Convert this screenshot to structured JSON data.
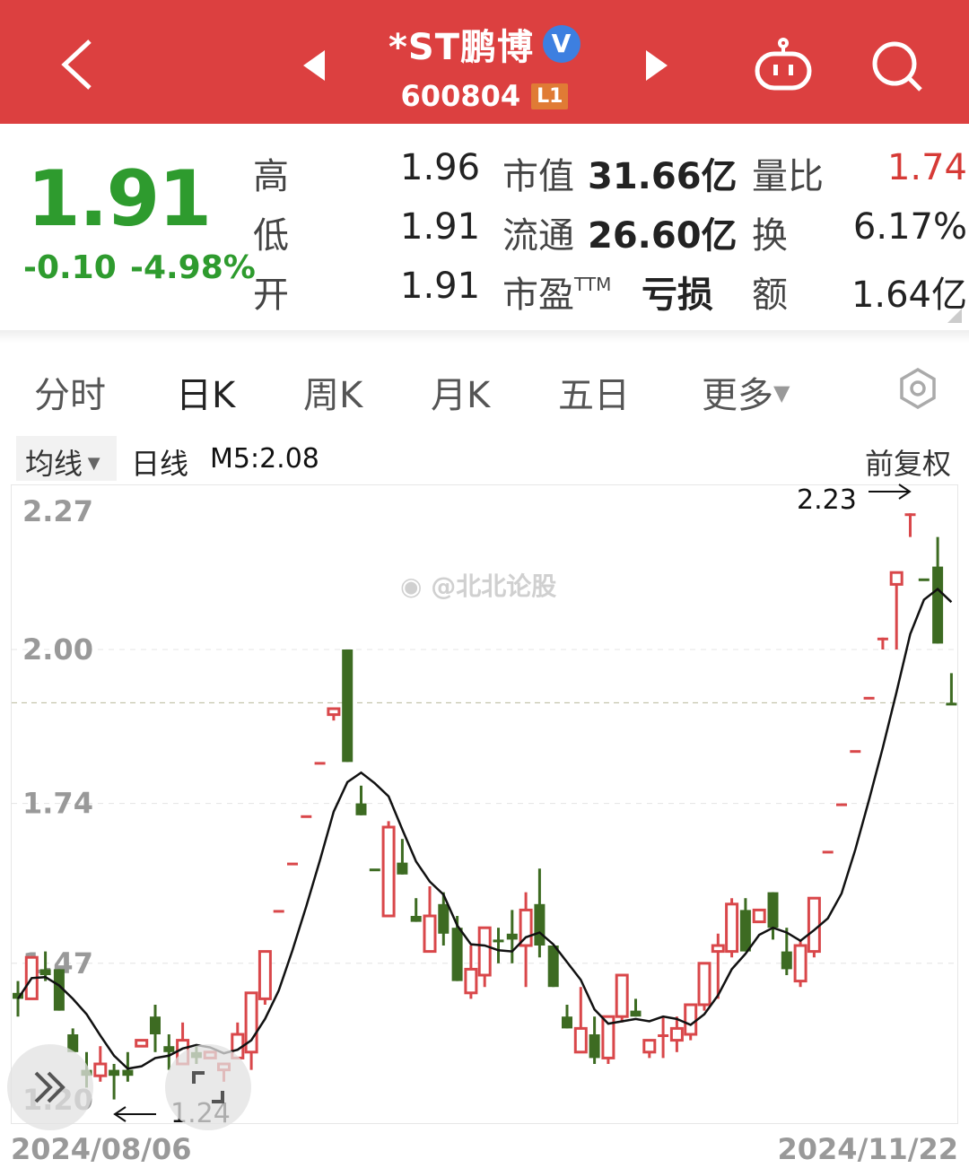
{
  "header": {
    "stock_name": "*ST鹏博",
    "verified_badge": "V",
    "stock_code": "600804",
    "level_badge": "L1",
    "icons": [
      "back-chevron-icon",
      "prev-triangle-icon",
      "next-triangle-icon",
      "robot-assistant-icon",
      "search-icon"
    ]
  },
  "quote": {
    "price": "1.91",
    "change": "-0.10",
    "change_pct": "-4.98%",
    "rows": [
      {
        "label": "高",
        "value": "1.96",
        "label2": "市值",
        "value2": "31.66亿",
        "label3": "量比",
        "value3": "1.74"
      },
      {
        "label": "低",
        "value": "1.91",
        "label2": "流通",
        "value2": "26.60亿",
        "label3": "换",
        "value3": "6.17%"
      },
      {
        "label": "开",
        "value": "1.91",
        "label2": "市盈",
        "label2_sup": "TTM",
        "value2": "亏损",
        "label3": "额",
        "value3": "1.64亿"
      }
    ],
    "colors": {
      "down": "#2e9b2e",
      "up": "#d63a36"
    }
  },
  "tabs": [
    {
      "label": "分时",
      "active": false
    },
    {
      "label": "日K",
      "active": true
    },
    {
      "label": "周K",
      "active": false
    },
    {
      "label": "月K",
      "active": false
    },
    {
      "label": "五日",
      "active": false
    },
    {
      "label": "更多",
      "active": false
    }
  ],
  "subbar": {
    "ma_selector": "均线",
    "line_type": "日线",
    "ma_value": "M5:2.08",
    "adjust": "前复权"
  },
  "watermark": "@北北论股",
  "annotations": {
    "high": "2.23",
    "low": "1.24"
  },
  "chart_data": {
    "type": "candlestick",
    "ylim": [
      1.2,
      2.27
    ],
    "y_ticks": [
      "2.27",
      "2.00",
      "1.74",
      "1.47",
      "1.20"
    ],
    "x_start": "2024/08/06",
    "x_end": "2024/11/22",
    "current_price_line": 1.91,
    "ma": "MA5",
    "colors": {
      "up": "#d9474a",
      "down": "#3d6b22",
      "ma": "#111111"
    },
    "ohlc": [
      [
        1.42,
        1.44,
        1.38,
        1.41
      ],
      [
        1.41,
        1.48,
        1.41,
        1.48
      ],
      [
        1.46,
        1.49,
        1.44,
        1.45
      ],
      [
        1.46,
        1.46,
        1.39,
        1.39
      ],
      [
        1.35,
        1.36,
        1.32,
        1.32
      ],
      [
        1.29,
        1.32,
        1.26,
        1.28
      ],
      [
        1.28,
        1.33,
        1.27,
        1.3
      ],
      [
        1.29,
        1.3,
        1.24,
        1.28
      ],
      [
        1.29,
        1.32,
        1.27,
        1.28
      ],
      [
        1.33,
        1.34,
        1.33,
        1.34
      ],
      [
        1.38,
        1.4,
        1.32,
        1.35
      ],
      [
        1.33,
        1.35,
        1.29,
        1.32
      ],
      [
        1.3,
        1.37,
        1.3,
        1.34
      ],
      [
        1.32,
        1.33,
        1.3,
        1.31
      ],
      [
        1.31,
        1.32,
        1.31,
        1.32
      ],
      [
        1.29,
        1.3,
        1.27,
        1.3
      ],
      [
        1.31,
        1.37,
        1.31,
        1.35
      ],
      [
        1.32,
        1.42,
        1.29,
        1.42
      ],
      [
        1.41,
        1.49,
        1.4,
        1.49
      ],
      [
        1.56,
        1.56,
        1.56,
        1.56
      ],
      [
        1.64,
        1.64,
        1.64,
        1.64
      ],
      [
        1.72,
        1.72,
        1.72,
        1.72
      ],
      [
        1.81,
        1.81,
        1.81,
        1.81
      ],
      [
        1.89,
        1.9,
        1.88,
        1.9
      ],
      [
        2.0,
        2.0,
        1.81,
        1.81
      ],
      [
        1.74,
        1.77,
        1.72,
        1.72
      ],
      [
        1.63,
        1.63,
        1.63,
        1.63
      ],
      [
        1.55,
        1.71,
        1.55,
        1.7
      ],
      [
        1.64,
        1.68,
        1.62,
        1.62
      ],
      [
        1.55,
        1.58,
        1.54,
        1.54
      ],
      [
        1.49,
        1.6,
        1.49,
        1.55
      ],
      [
        1.57,
        1.59,
        1.5,
        1.52
      ],
      [
        1.53,
        1.55,
        1.44,
        1.44
      ],
      [
        1.42,
        1.5,
        1.41,
        1.46
      ],
      [
        1.45,
        1.53,
        1.43,
        1.53
      ],
      [
        1.51,
        1.53,
        1.47,
        1.51
      ],
      [
        1.52,
        1.56,
        1.47,
        1.51
      ],
      [
        1.5,
        1.59,
        1.43,
        1.56
      ],
      [
        1.57,
        1.63,
        1.48,
        1.5
      ],
      [
        1.5,
        1.5,
        1.43,
        1.43
      ],
      [
        1.38,
        1.4,
        1.36,
        1.36
      ],
      [
        1.32,
        1.43,
        1.32,
        1.36
      ],
      [
        1.35,
        1.38,
        1.3,
        1.31
      ],
      [
        1.31,
        1.38,
        1.3,
        1.38
      ],
      [
        1.38,
        1.45,
        1.37,
        1.45
      ],
      [
        1.39,
        1.41,
        1.38,
        1.38
      ],
      [
        1.32,
        1.34,
        1.31,
        1.34
      ],
      [
        1.35,
        1.38,
        1.31,
        1.35
      ],
      [
        1.34,
        1.38,
        1.32,
        1.36
      ],
      [
        1.35,
        1.4,
        1.34,
        1.4
      ],
      [
        1.4,
        1.47,
        1.39,
        1.47
      ],
      [
        1.49,
        1.52,
        1.41,
        1.5
      ],
      [
        1.49,
        1.58,
        1.48,
        1.57
      ],
      [
        1.56,
        1.58,
        1.49,
        1.49
      ],
      [
        1.54,
        1.56,
        1.54,
        1.56
      ],
      [
        1.59,
        1.59,
        1.51,
        1.53
      ],
      [
        1.49,
        1.53,
        1.45,
        1.46
      ],
      [
        1.44,
        1.51,
        1.43,
        1.5
      ],
      [
        1.49,
        1.58,
        1.48,
        1.58
      ],
      [
        1.66,
        1.66,
        1.66,
        1.66
      ],
      [
        1.74,
        1.74,
        1.74,
        1.74
      ],
      [
        1.83,
        1.83,
        1.83,
        1.83
      ],
      [
        1.92,
        1.92,
        1.92,
        1.92
      ],
      [
        2.02,
        2.02,
        2.0,
        2.02
      ],
      [
        2.11,
        2.13,
        2.0,
        2.13
      ],
      [
        2.23,
        2.23,
        2.19,
        2.23
      ],
      [
        2.12,
        2.12,
        2.12,
        2.12
      ],
      [
        2.14,
        2.19,
        2.01,
        2.01
      ],
      [
        1.91,
        1.96,
        1.91,
        1.91
      ]
    ]
  }
}
